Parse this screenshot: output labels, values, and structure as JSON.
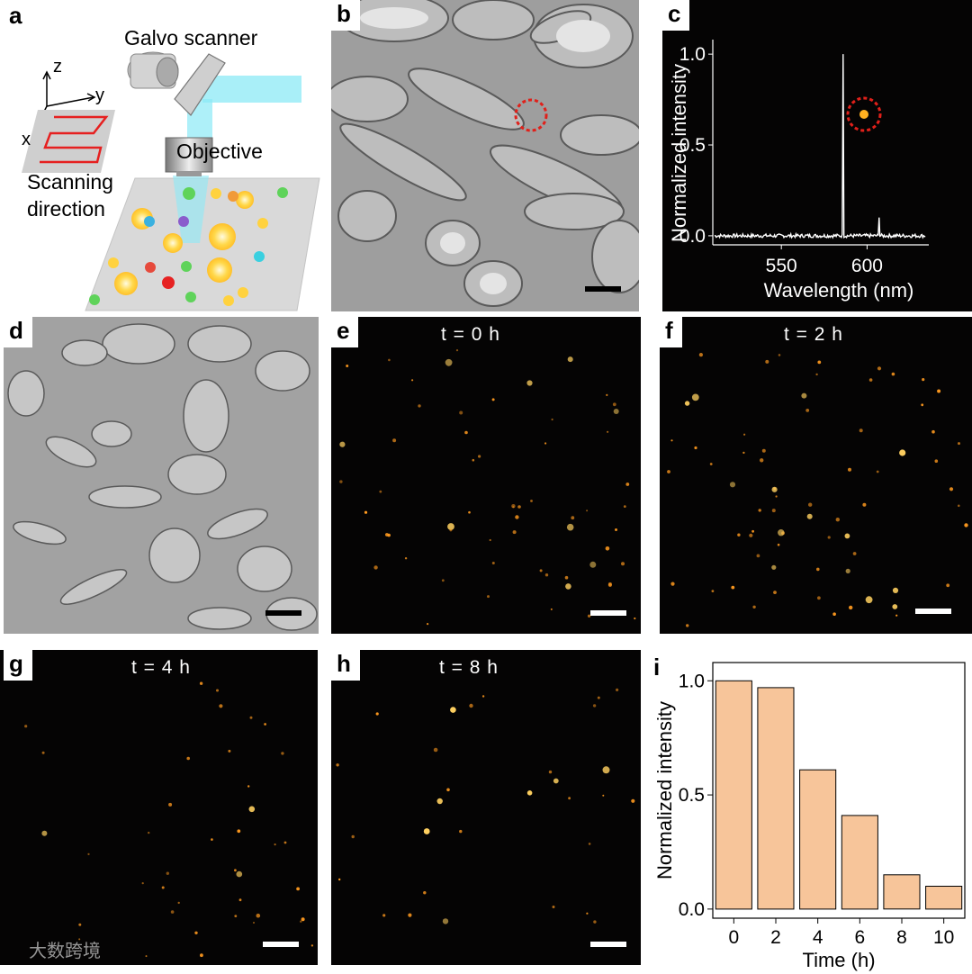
{
  "panels": {
    "a": {
      "letter": "a",
      "galvo": "Galvo scanner",
      "objective": "Objective",
      "axis_x": "x",
      "axis_y": "y",
      "axis_z": "z",
      "scan_line1": "Scanning",
      "scan_line2": "direction"
    },
    "b": {
      "letter": "b"
    },
    "c": {
      "letter": "c"
    },
    "d": {
      "letter": "d"
    },
    "e": {
      "letter": "e",
      "time": "t = 0 h"
    },
    "f": {
      "letter": "f",
      "time": "t = 2 h"
    },
    "g": {
      "letter": "g",
      "time": "t = 4 h"
    },
    "h": {
      "letter": "h",
      "time": "t = 8 h"
    },
    "i": {
      "letter": "i"
    }
  },
  "watermark": "大数跨境",
  "colors": {
    "bar_fill": "#f7c59a",
    "spot": "#ff9a1f",
    "circle": "#e0201a",
    "laser": "#7fe8f5"
  },
  "chart_data": [
    {
      "type": "line",
      "panel": "c",
      "xlabel": "Wavelength (nm)",
      "ylabel": "Normalized intensity",
      "xticks": [
        "550",
        "600"
      ],
      "yticks": [
        "0.0",
        "0.5",
        "1.0"
      ],
      "xlim": [
        510,
        636
      ],
      "ylim": [
        -0.05,
        1.08
      ],
      "peaks": [
        {
          "x": 586,
          "y": 1.0
        },
        {
          "x": 607,
          "y": 0.1
        }
      ],
      "baseline": 0.0
    },
    {
      "type": "bar",
      "panel": "i",
      "xlabel": "Time (h)",
      "ylabel": "Normalized intensity",
      "categories": [
        "0",
        "2",
        "4",
        "6",
        "8",
        "10"
      ],
      "values": [
        1.0,
        0.97,
        0.61,
        0.41,
        0.15,
        0.1
      ],
      "yticks": [
        "0.0",
        "0.5",
        "1.0"
      ],
      "ylim": [
        -0.04,
        1.08
      ]
    }
  ]
}
